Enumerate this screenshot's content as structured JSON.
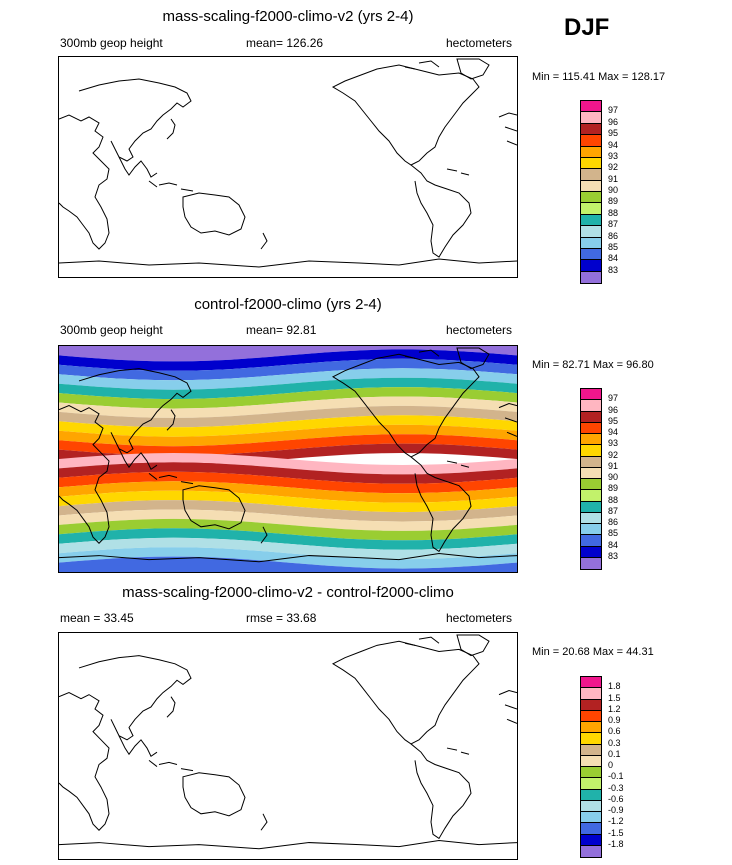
{
  "season": "DJF",
  "panels": [
    {
      "title": "mass-scaling-f2000-climo-v2 (yrs 2-4)",
      "left_label": "300mb geop height",
      "center_label": "mean= 126.26",
      "right_label": "hectometers",
      "minmax": "Min = 115.41 Max = 128.17"
    },
    {
      "title": "control-f2000-climo (yrs 2-4)",
      "left_label": "300mb geop height",
      "center_label": "mean= 92.81",
      "right_label": "hectometers",
      "minmax": "Min = 82.71 Max = 96.80"
    },
    {
      "title": "mass-scaling-f2000-climo-v2 - control-f2000-climo",
      "left_label": "mean = 33.45",
      "center_label": "rmse = 33.68",
      "right_label": "hectometers",
      "minmax": "Min = 20.68 Max = 44.31"
    }
  ],
  "chart_data": [
    {
      "type": "heatmap",
      "title": "mass-scaling-f2000-climo-v2 (yrs 2-4)",
      "variable": "300mb geop height",
      "units": "hectometers",
      "mean": 126.26,
      "min": 115.41,
      "max": 128.17,
      "field_rendered": "blank (all values above contour range)",
      "legend_levels": [
        "97",
        "96",
        "95",
        "94",
        "93",
        "92",
        "91",
        "90",
        "89",
        "88",
        "87",
        "86",
        "85",
        "84",
        "83"
      ],
      "legend_colors": [
        "#f0168c",
        "#ffb6c1",
        "#b22222",
        "#ff4500",
        "#ffa500",
        "#ffd700",
        "#d2b48c",
        "#f5deb3",
        "#9acd32",
        "#c2f26b",
        "#20b2aa",
        "#b0e0e6",
        "#87ceeb",
        "#4169e1",
        "#0000cd",
        "#9370db"
      ]
    },
    {
      "type": "heatmap",
      "title": "control-f2000-climo (yrs 2-4)",
      "variable": "300mb geop height",
      "units": "hectometers",
      "mean": 92.81,
      "min": 82.71,
      "max": 96.8,
      "legend_levels": [
        "97",
        "96",
        "95",
        "94",
        "93",
        "92",
        "91",
        "90",
        "89",
        "88",
        "87",
        "86",
        "85",
        "84",
        "83"
      ],
      "legend_colors": [
        "#f0168c",
        "#ffb6c1",
        "#b22222",
        "#ff4500",
        "#ffa500",
        "#ffd700",
        "#d2b48c",
        "#f5deb3",
        "#9acd32",
        "#c2f26b",
        "#20b2aa",
        "#b0e0e6",
        "#87ceeb",
        "#4169e1",
        "#0000cd",
        "#9370db"
      ],
      "bands_north_to_south": [
        "#9370db",
        "#0000cd",
        "#4169e1",
        "#87ceeb",
        "#20b2aa",
        "#9acd32",
        "#f5deb3",
        "#d2b48c",
        "#ffd700",
        "#ffa500",
        "#ff4500",
        "#b22222",
        "#ffb6c1",
        "#b22222",
        "#ff4500",
        "#ffa500",
        "#ffd700",
        "#d2b48c",
        "#f5deb3",
        "#9acd32",
        "#20b2aa",
        "#b0e0e6",
        "#87ceeb",
        "#4169e1"
      ]
    },
    {
      "type": "heatmap",
      "title": "mass-scaling-f2000-climo-v2 - control-f2000-climo",
      "units": "hectometers",
      "mean": 33.45,
      "rmse": 33.68,
      "min": 20.68,
      "max": 44.31,
      "field_rendered": "blank (all differences above contour range)",
      "legend_levels": [
        "1.8",
        "1.5",
        "1.2",
        "0.9",
        "0.6",
        "0.3",
        "0.1",
        "0",
        "-0.1",
        "-0.3",
        "-0.6",
        "-0.9",
        "-1.2",
        "-1.5",
        "-1.8"
      ],
      "legend_colors": [
        "#f0168c",
        "#ffb6c1",
        "#b22222",
        "#ff4500",
        "#ffa500",
        "#ffd700",
        "#d2b48c",
        "#f5deb3",
        "#9acd32",
        "#c2f26b",
        "#20b2aa",
        "#b0e0e6",
        "#87ceeb",
        "#4169e1",
        "#0000cd",
        "#9370db"
      ]
    }
  ]
}
